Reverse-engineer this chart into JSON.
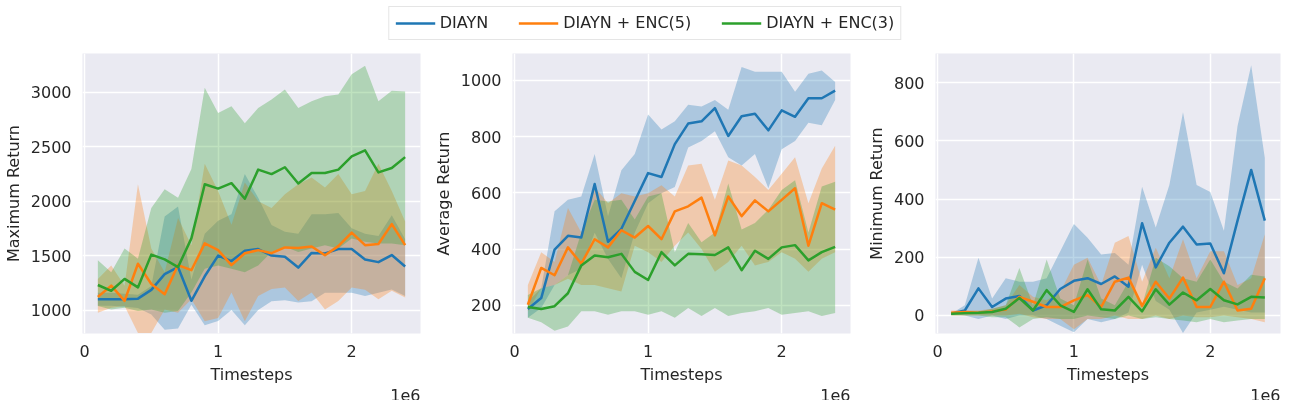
{
  "chart_data": [
    {
      "type": "line",
      "ylabel": "Maximum Return",
      "xlabel": "Timesteps",
      "annotations": [
        "1e6"
      ],
      "legend": "top",
      "grid": true,
      "line_style": "solid",
      "x": [
        0.1,
        0.2,
        0.3,
        0.4,
        0.5,
        0.6,
        0.7,
        0.8,
        0.9,
        1.0,
        1.1,
        1.2,
        1.3,
        1.4,
        1.5,
        1.6,
        1.7,
        1.8,
        1.9,
        2.0,
        2.1,
        2.2,
        2.3,
        2.4
      ],
      "xlim": [
        -0.015,
        2.515
      ],
      "xticks": [
        0,
        1,
        2
      ],
      "ylim": [
        785,
        3355
      ],
      "yticks": [
        1000,
        1500,
        2000,
        2500,
        3000
      ],
      "series": [
        {
          "name": "DIAYN",
          "color": "#1f77b4",
          "values": [
            1100,
            1100,
            1100,
            1105,
            1185,
            1330,
            1395,
            1085,
            1310,
            1500,
            1450,
            1545,
            1560,
            1500,
            1490,
            1390,
            1525,
            1520,
            1560,
            1560,
            1465,
            1440,
            1505,
            1400
          ],
          "lower": [
            1040,
            1040,
            1030,
            1020,
            960,
            820,
            830,
            1050,
            860,
            900,
            1000,
            860,
            1000,
            1080,
            1090,
            1070,
            1080,
            1160,
            1160,
            1160,
            1130,
            1160,
            1190,
            1130
          ],
          "upper": [
            1160,
            1160,
            1150,
            1140,
            1220,
            1860,
            1950,
            1280,
            1700,
            1820,
            1880,
            2250,
            2030,
            1780,
            1720,
            1700,
            1880,
            1880,
            1890,
            1750,
            1700,
            1680,
            1870,
            1650
          ]
        },
        {
          "name": "DIAYN + ENC(5)",
          "color": "#ff7f0e",
          "values": [
            1121,
            1224,
            1084,
            1425,
            1239,
            1146,
            1413,
            1366,
            1612,
            1550,
            1413,
            1522,
            1550,
            1522,
            1575,
            1569,
            1584,
            1503,
            1587,
            1711,
            1596,
            1606,
            1789,
            1596
          ],
          "lower": [
            975,
            1022,
            1037,
            790,
            790,
            1006,
            975,
            1099,
            897,
            928,
            1161,
            897,
            1130,
            1193,
            1208,
            1084,
            1161,
            1006,
            1084,
            1208,
            1186,
            1099,
            1177,
            1115
          ],
          "upper": [
            1286,
            1410,
            1224,
            2155,
            1565,
            1348,
            1845,
            1596,
            2342,
            2093,
            1783,
            2171,
            2000,
            1938,
            2062,
            2155,
            2217,
            2124,
            2248,
            2062,
            2093,
            2342,
            2093,
            1814
          ]
        },
        {
          "name": "DIAYN + ENC(3)",
          "color": "#2ca02c",
          "values": [
            1230,
            1177,
            1286,
            1208,
            1509,
            1466,
            1394,
            1658,
            2155,
            2115,
            2165,
            2022,
            2289,
            2248,
            2311,
            2162,
            2258,
            2258,
            2289,
            2410,
            2466,
            2264,
            2304,
            2404
          ],
          "lower": [
            1037,
            1006,
            1022,
            991,
            1006,
            975,
            991,
            1161,
            1379,
            1410,
            1379,
            1348,
            1410,
            1534,
            1581,
            1534,
            1565,
            1596,
            1565,
            1658,
            1627,
            1612,
            1612,
            1596
          ],
          "upper": [
            1457,
            1348,
            1565,
            1472,
            1938,
            2109,
            2031,
            2295,
            3040,
            2808,
            2870,
            2714,
            2854,
            2932,
            3025,
            2854,
            2916,
            2963,
            2978,
            3165,
            3243,
            2916,
            3012,
            3006
          ]
        }
      ]
    },
    {
      "type": "line",
      "ylabel": "Average Return",
      "xlabel": "Timesteps",
      "annotations": [
        "1e6"
      ],
      "grid": true,
      "line_style": "solid",
      "x": [
        0.1,
        0.2,
        0.3,
        0.4,
        0.5,
        0.6,
        0.7,
        0.8,
        0.9,
        1.0,
        1.1,
        1.2,
        1.3,
        1.4,
        1.5,
        1.6,
        1.7,
        1.8,
        1.9,
        2.0,
        2.1,
        2.2,
        2.3,
        2.4
      ],
      "xlim": [
        -0.015,
        2.515
      ],
      "xticks": [
        0,
        1,
        2
      ],
      "ylim": [
        100,
        1095
      ],
      "yticks": [
        200,
        400,
        600,
        800,
        1000
      ],
      "series": [
        {
          "color": "#1f77b4",
          "values": [
            187,
            226,
            398,
            447,
            441,
            631,
            426,
            472,
            571,
            670,
            656,
            773,
            846,
            854,
            901,
            802,
            872,
            881,
            822,
            893,
            870,
            936,
            936,
            963
          ],
          "lower": [
            156,
            191,
            272,
            307,
            330,
            458,
            365,
            296,
            458,
            563,
            598,
            621,
            761,
            784,
            819,
            726,
            697,
            738,
            616,
            755,
            784,
            849,
            840,
            930
          ],
          "upper": [
            214,
            261,
            534,
            575,
            587,
            738,
            517,
            680,
            738,
            878,
            825,
            854,
            913,
            907,
            930,
            895,
            1047,
            1030,
            1030,
            1030,
            959,
            1023,
            1035,
            994
          ]
        },
        {
          "color": "#ff7f0e",
          "values": [
            202,
            333,
            307,
            406,
            348,
            435,
            406,
            467,
            441,
            482,
            435,
            534,
            552,
            583,
            449,
            587,
            517,
            573,
            534,
            575,
            616,
            412,
            563,
            540
          ],
          "lower": [
            179,
            261,
            272,
            295,
            272,
            272,
            261,
            249,
            412,
            389,
            354,
            412,
            459,
            400,
            319,
            354,
            412,
            342,
            354,
            389,
            366,
            319,
            366,
            389
          ],
          "upper": [
            272,
            389,
            354,
            546,
            459,
            621,
            563,
            598,
            587,
            598,
            627,
            587,
            697,
            703,
            575,
            715,
            697,
            656,
            610,
            668,
            726,
            563,
            686,
            767
          ]
        },
        {
          "color": "#2ca02c",
          "values": [
            194,
            187,
            197,
            243,
            342,
            377,
            371,
            383,
            319,
            290,
            389,
            342,
            383,
            382,
            379,
            406,
            325,
            394,
            365,
            406,
            414,
            360,
            389,
            408
          ],
          "lower": [
            156,
            140,
            110,
            125,
            179,
            179,
            167,
            179,
            179,
            167,
            179,
            156,
            191,
            162,
            191,
            162,
            173,
            179,
            191,
            167,
            173,
            179,
            162,
            173
          ],
          "upper": [
            237,
            261,
            272,
            307,
            459,
            575,
            569,
            575,
            505,
            587,
            598,
            389,
            493,
            424,
            459,
            633,
            470,
            493,
            540,
            610,
            645,
            459,
            622,
            639
          ]
        }
      ]
    },
    {
      "type": "line",
      "ylabel": "Minimum Return",
      "xlabel": "Timesteps",
      "annotations": [
        "1e6"
      ],
      "grid": true,
      "line_style": "solid",
      "x": [
        0.1,
        0.2,
        0.3,
        0.4,
        0.5,
        0.6,
        0.7,
        0.8,
        0.9,
        1.0,
        1.1,
        1.2,
        1.3,
        1.4,
        1.5,
        1.6,
        1.7,
        1.8,
        1.9,
        2.0,
        2.1,
        2.2,
        2.3,
        2.4
      ],
      "xlim": [
        -0.015,
        2.515
      ],
      "xticks": [
        0,
        1,
        2
      ],
      "ylim": [
        -62,
        900
      ],
      "yticks": [
        0,
        200,
        400,
        600,
        800
      ],
      "series": [
        {
          "color": "#1f77b4",
          "values": [
            6,
            17,
            93,
            29,
            58,
            67,
            17,
            35,
            91,
            119,
            128,
            108,
            134,
            99,
            317,
            165,
            250,
            305,
            244,
            247,
            145,
            326,
            500,
            326
          ],
          "lower": [
            6,
            0,
            -12,
            0,
            -12,
            0,
            0,
            -12,
            -35,
            -58,
            -12,
            -23,
            -12,
            10,
            174,
            50,
            20,
            -60,
            10,
            20,
            30,
            20,
            10,
            10
          ],
          "upper": [
            6,
            35,
            198,
            58,
            128,
            116,
            116,
            128,
            221,
            314,
            267,
            209,
            215,
            174,
            442,
            302,
            448,
            698,
            448,
            424,
            291,
            651,
            860,
            541
          ]
        },
        {
          "color": "#ff7f0e",
          "values": [
            9,
            12,
            9,
            14,
            20,
            64,
            47,
            29,
            29,
            52,
            70,
            29,
            116,
            130,
            33,
            116,
            58,
            130,
            29,
            29,
            116,
            17,
            23,
            128
          ],
          "lower": [
            0,
            0,
            0,
            0,
            0,
            6,
            -6,
            -12,
            -12,
            -47,
            -12,
            -12,
            0,
            -12,
            -12,
            0,
            -12,
            0,
            -6,
            -6,
            0,
            -6,
            -12,
            -23
          ],
          "upper": [
            17,
            17,
            17,
            23,
            35,
            105,
            64,
            52,
            81,
            174,
            198,
            105,
            250,
            273,
            116,
            233,
            128,
            262,
            128,
            221,
            221,
            105,
            128,
            279
          ]
        },
        {
          "color": "#2ca02c",
          "values": [
            6,
            8,
            9,
            12,
            23,
            60,
            17,
            87,
            35,
            12,
            90,
            21,
            17,
            64,
            14,
            90,
            37,
            79,
            52,
            91,
            52,
            38,
            64,
            62
          ],
          "lower": [
            0,
            0,
            0,
            -6,
            -6,
            -41,
            -12,
            -6,
            -12,
            -12,
            0,
            -6,
            -12,
            0,
            -12,
            -6,
            -12,
            -17,
            -23,
            -12,
            -23,
            -17,
            -12,
            -12
          ],
          "upper": [
            12,
            12,
            14,
            23,
            35,
            163,
            35,
            192,
            58,
            35,
            192,
            58,
            35,
            116,
            35,
            198,
            169,
            128,
            116,
            192,
            116,
            93,
            140,
            134
          ]
        }
      ]
    }
  ]
}
